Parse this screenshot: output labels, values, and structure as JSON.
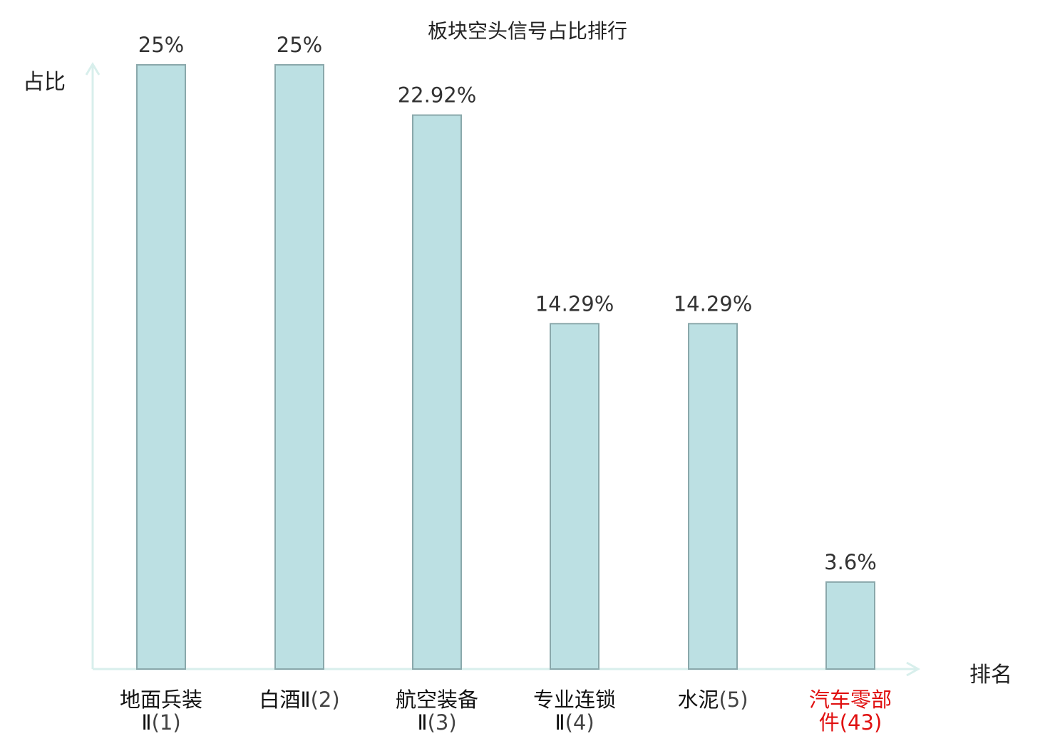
{
  "chart_data": {
    "type": "bar",
    "title": "板块空头信号占比排行",
    "ylabel": "占比",
    "xlabel": "排名",
    "ylim": [
      0,
      25
    ],
    "grid": false,
    "categories": [
      {
        "name_line1": "地面兵装",
        "name_line2": "Ⅱ",
        "rank": "(1)"
      },
      {
        "name_line1": "白酒Ⅱ",
        "name_line2": "",
        "rank": "(2)"
      },
      {
        "name_line1": "航空装备",
        "name_line2": "Ⅱ",
        "rank": "(3)"
      },
      {
        "name_line1": "专业连锁",
        "name_line2": "Ⅱ",
        "rank": "(4)"
      },
      {
        "name_line1": "水泥",
        "name_line2": "",
        "rank": "(5)"
      },
      {
        "name_line1": "汽车零部",
        "name_line2": "件",
        "rank": "(43)",
        "highlight": true
      }
    ],
    "values": [
      25,
      25,
      22.92,
      14.29,
      14.29,
      3.6
    ],
    "value_labels": [
      "25%",
      "25%",
      "22.92%",
      "14.29%",
      "14.29%",
      "3.6%"
    ],
    "colors": {
      "bar_fill": "#bce0e3",
      "bar_stroke": "#8aa8ab",
      "axis": "#d8efec",
      "label": "#333333",
      "highlight": "#e01010"
    }
  }
}
